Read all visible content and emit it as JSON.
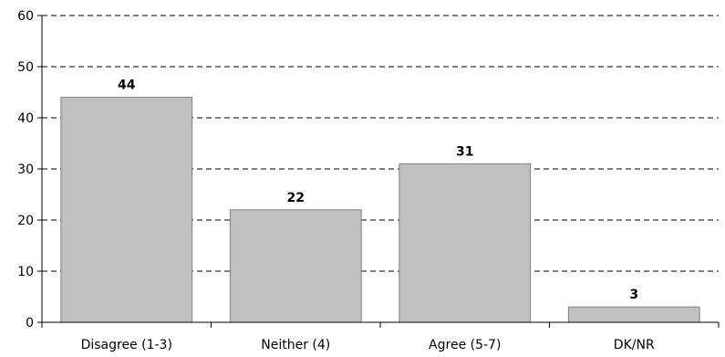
{
  "chart_data": {
    "type": "bar",
    "categories": [
      "Disagree (1-3)",
      "Neither (4)",
      "Agree (5-7)",
      "DK/NR"
    ],
    "values": [
      44,
      22,
      31,
      3
    ],
    "data_labels": [
      "44",
      "22",
      "31",
      "3"
    ],
    "title": "",
    "xlabel": "",
    "ylabel": "",
    "ylim": [
      0,
      60
    ],
    "yticks": [
      0,
      10,
      20,
      30,
      40,
      50,
      60
    ],
    "grid": true,
    "grid_style": "dashed",
    "legend": "none",
    "colors": {
      "bar_fill": "#c0c0c0",
      "bar_stroke": "#808080",
      "grid": "#000000",
      "axis": "#000000",
      "text": "#000000"
    }
  }
}
